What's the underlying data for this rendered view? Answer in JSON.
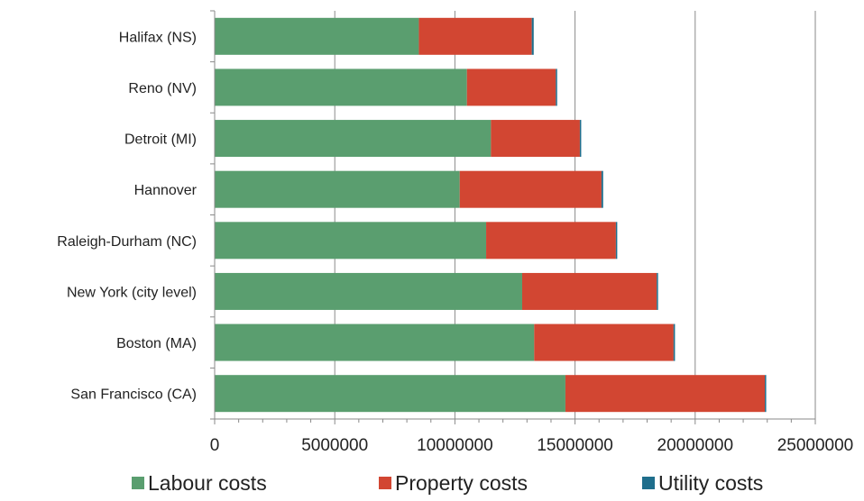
{
  "chart_data": {
    "type": "bar",
    "orientation": "horizontal",
    "stacked": true,
    "categories": [
      "Halifax (NS)",
      "Reno (NV)",
      "Detroit (MI)",
      "Hannover",
      "Raleigh-Durham (NC)",
      "New York (city level)",
      "Boston (MA)",
      "San Francisco (CA)"
    ],
    "series": [
      {
        "name": "Labour costs",
        "color": "#5a9e6f",
        "values": [
          8500000,
          10500000,
          11500000,
          10200000,
          11300000,
          12800000,
          13300000,
          14600000
        ]
      },
      {
        "name": "Property costs",
        "color": "#d24632",
        "values": [
          4700000,
          3700000,
          3700000,
          5900000,
          5400000,
          5600000,
          5800000,
          8300000
        ]
      },
      {
        "name": "Utility costs",
        "color": "#1f6e8c",
        "values": [
          80000,
          30000,
          30000,
          70000,
          30000,
          30000,
          60000,
          30000
        ]
      }
    ],
    "xticks": [
      "0",
      "5000000",
      "10000000",
      "15000000",
      "20000000",
      "25000000"
    ],
    "xlim": [
      0,
      25000000
    ],
    "title": "",
    "xlabel": "",
    "ylabel": "",
    "grid": "vertical major gridlines",
    "legend_position": "bottom"
  }
}
